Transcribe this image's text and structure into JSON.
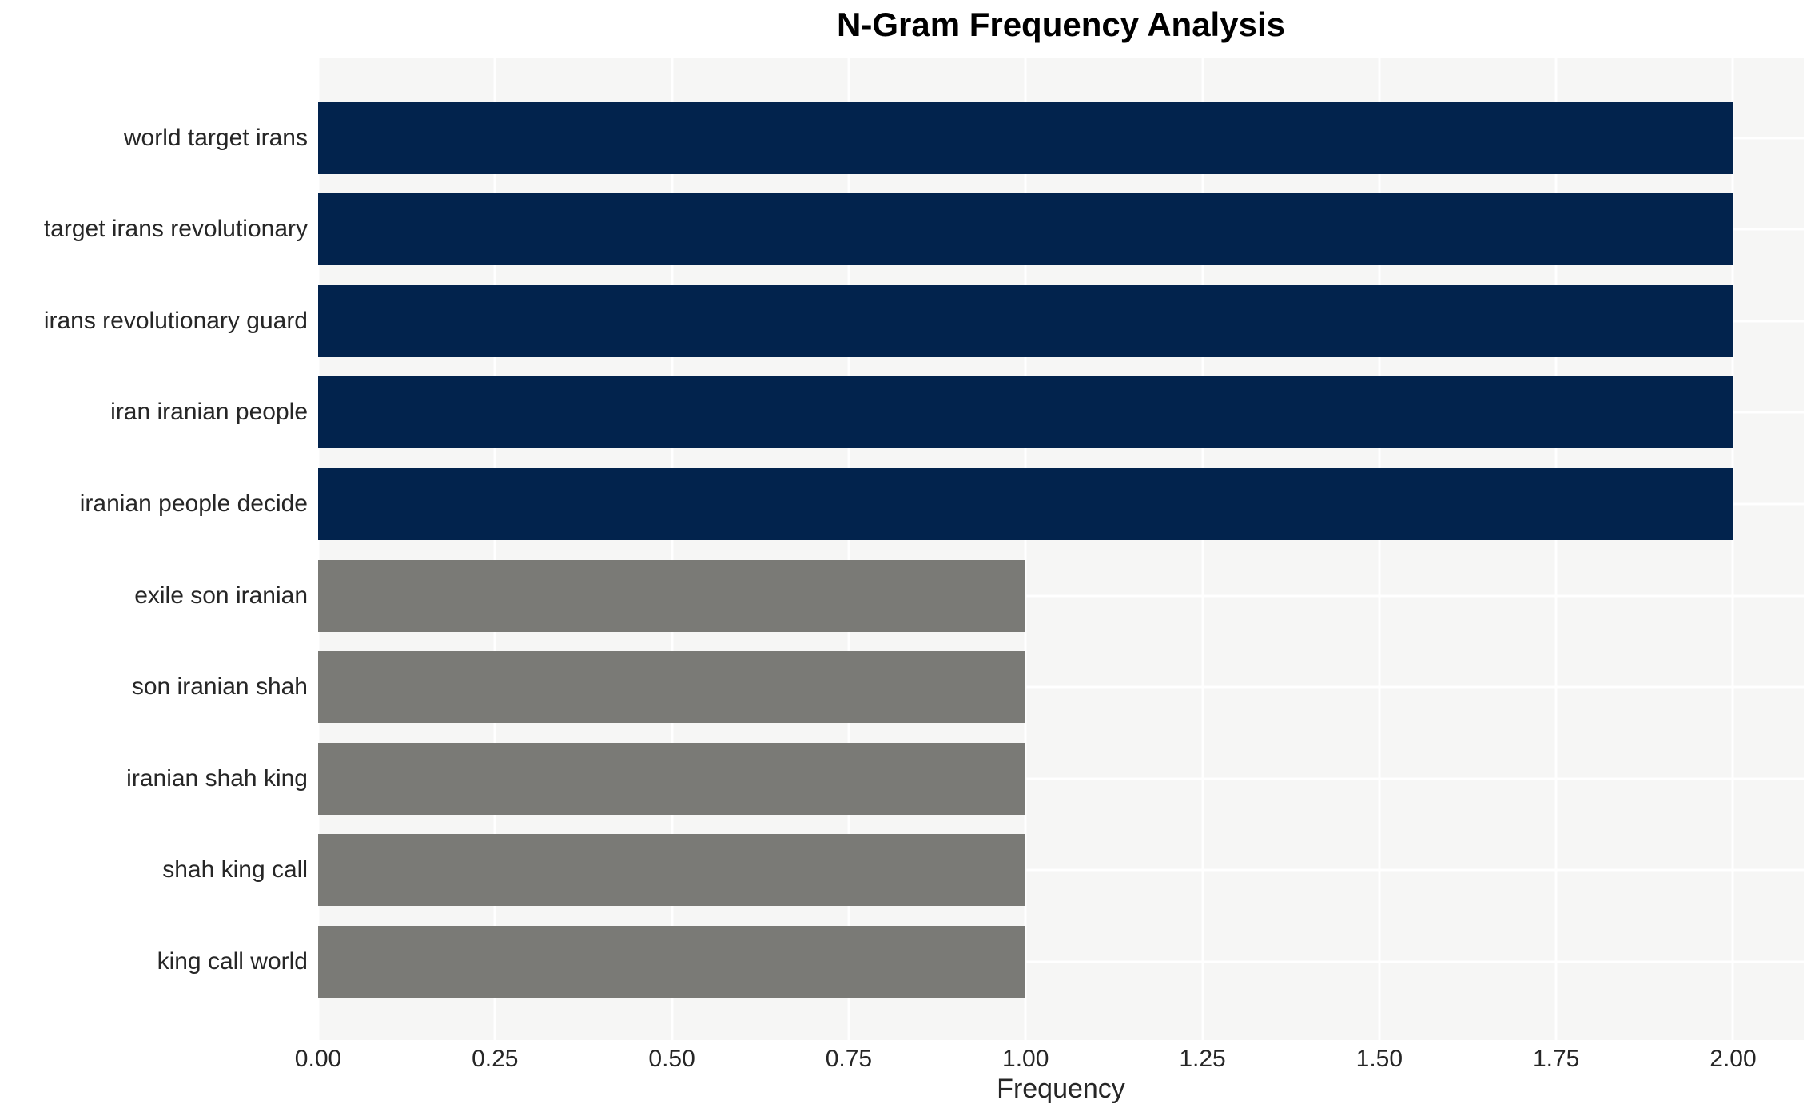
{
  "chart_data": {
    "type": "bar",
    "orientation": "horizontal",
    "title": "N-Gram Frequency Analysis",
    "xlabel": "Frequency",
    "ylabel": "",
    "categories": [
      "world target irans",
      "target irans revolutionary",
      "irans revolutionary guard",
      "iran iranian people",
      "iranian people decide",
      "exile son iranian",
      "son iranian shah",
      "iranian shah king",
      "shah king call",
      "king call world"
    ],
    "values": [
      2,
      2,
      2,
      2,
      2,
      1,
      1,
      1,
      1,
      1
    ],
    "bar_colors": [
      "#02234d",
      "#02234d",
      "#02234d",
      "#02234d",
      "#02234d",
      "#7a7a76",
      "#7a7a76",
      "#7a7a76",
      "#7a7a76",
      "#7a7a76"
    ],
    "xlim": [
      0,
      2.1
    ],
    "x_ticks": [
      "0.00",
      "0.25",
      "0.50",
      "0.75",
      "1.00",
      "1.25",
      "1.50",
      "1.75",
      "2.00"
    ],
    "x_tick_values": [
      0,
      0.25,
      0.5,
      0.75,
      1.0,
      1.25,
      1.5,
      1.75,
      2.0
    ],
    "grid": true,
    "legend": false,
    "plot_background": "#f6f6f5",
    "figure_background": "#ffffff",
    "gridline_color": "#ffffff",
    "accent_color_high": "#02234d",
    "accent_color_low": "#7a7a76"
  }
}
